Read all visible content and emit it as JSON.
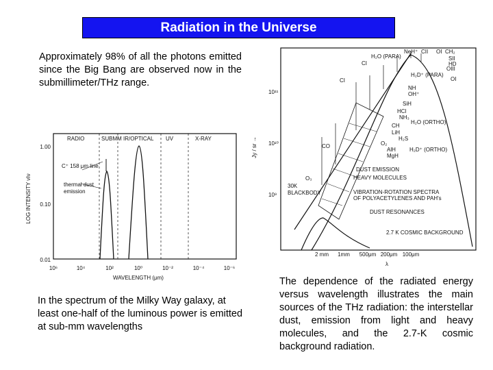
{
  "header": {
    "title": "Radiation in the Universe"
  },
  "paragraphs": [
    "Approximately 98% of all the photons emitted since the Big Bang are observed now in the submillimeter/THz range.",
    "In the spectrum of the Milky Way galaxy, at least one-half of the luminous power is emitted at sub-mm wavelengths",
    "The dependence of the radiated energy versus wavelength illustrates the main sources of the THz radiation: the interstellar dust, emission from light and heavy molecules, and the 2.7-K cosmic background radiation."
  ],
  "figure_left": {
    "ylabel": "LOG INTENSITY νIν",
    "xlabel": "WAVELENGTH (μm)",
    "yticks": [
      "1.00",
      "0.10",
      "0.01"
    ],
    "xticks": [
      "10⁶",
      "10⁴",
      "10²",
      "10⁰",
      "10⁻²",
      "10⁻⁴",
      "10⁻⁶"
    ],
    "bands": [
      "RADIO",
      "SUBMM",
      "IR/OPTICAL",
      "UV",
      "X-RAY"
    ],
    "annotations": [
      "C⁺ 158 μm line",
      "thermal dust",
      "emission"
    ]
  },
  "figure_right": {
    "ylabel": "Jy / sr →",
    "yticks": [
      "10¹¹",
      "10¹⁰",
      "10⁹"
    ],
    "xticks": [
      "2 mm",
      "1mm",
      "500μm",
      "200μm",
      "100μm"
    ],
    "xlabel": "λ",
    "labels": [
      "H₂O (PARA)",
      "NeH⁺",
      "CII",
      "OI",
      "CH₂",
      "SII",
      "HD",
      "OIII",
      "CI",
      "CI",
      "OI",
      "H₂D⁺ (PARA)",
      "NH",
      "OH⁺",
      "SiH",
      "HCl",
      "NH₃",
      "CH",
      "LiH",
      "H₂S",
      "O₂",
      "AlH",
      "MgH",
      "H₂O (ORTHO)",
      "H₂D⁺ (ORTHO)",
      "CO",
      "O₃",
      "30K",
      "BLACKBODY",
      "DUST EMISSION",
      "HEAVY MOLECULES",
      "VIBRATION-ROTATION SPECTRA",
      "OF POLYACETYLENES AND PAH's",
      "DUST RESONANCES",
      "2.7 K COSMIC BACKGROUND"
    ]
  }
}
